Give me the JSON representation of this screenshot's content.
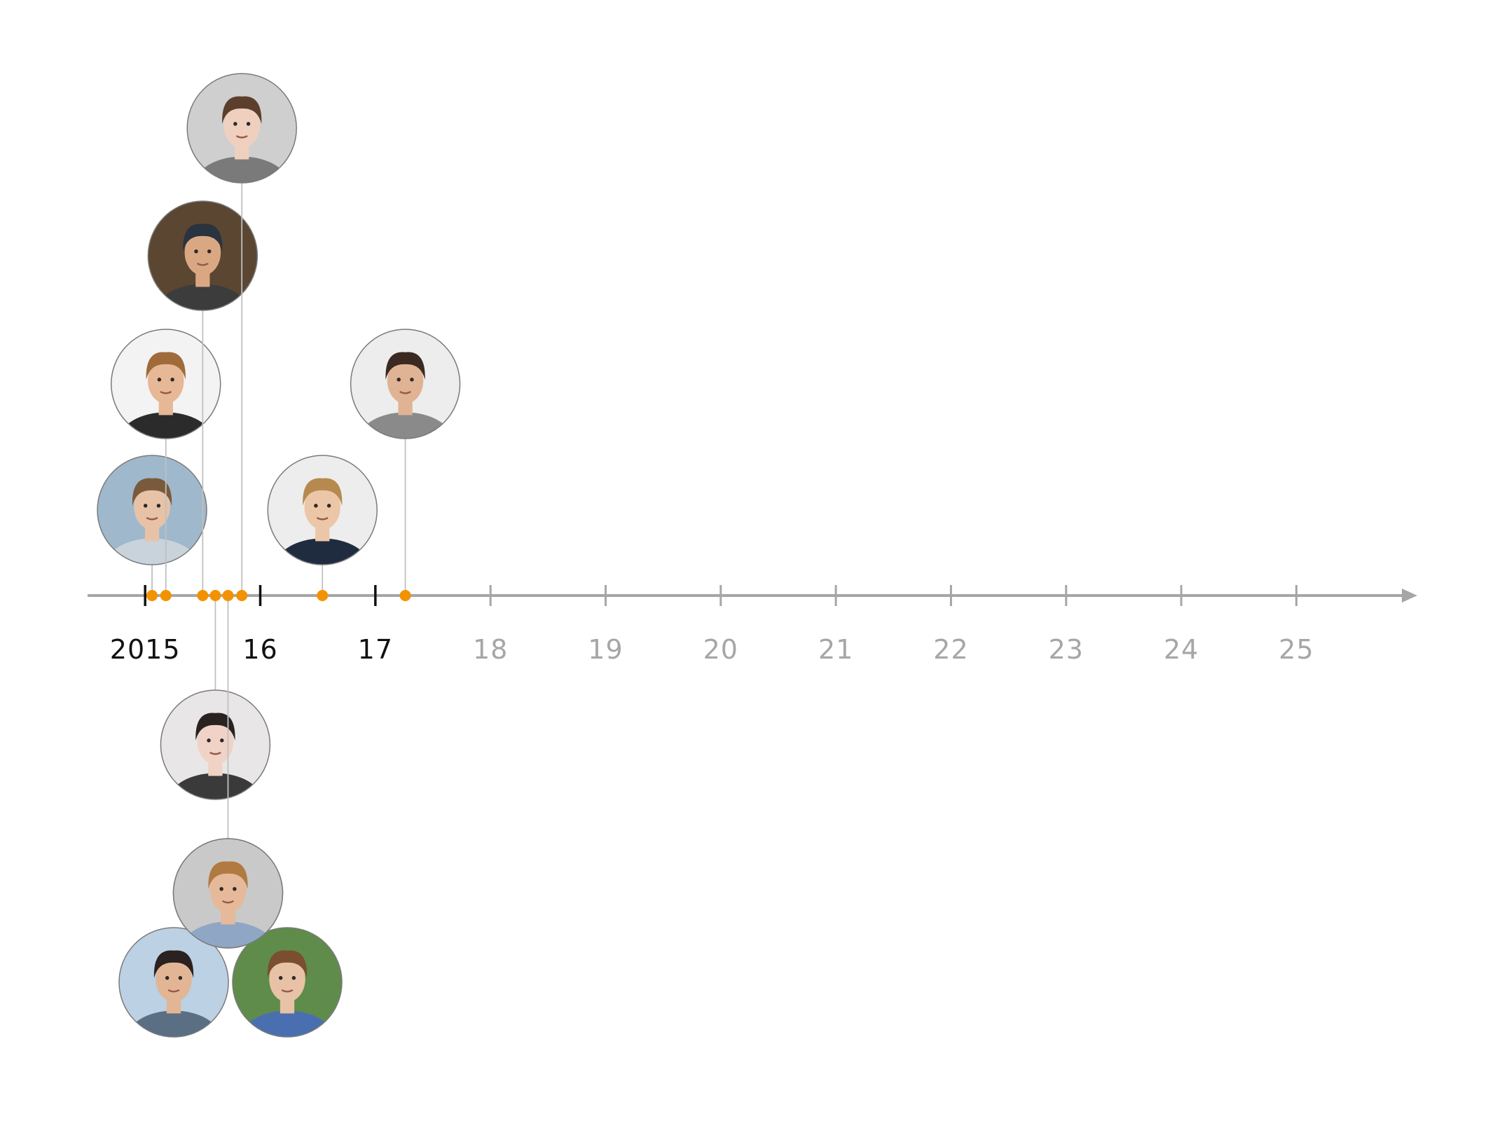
{
  "colors": {
    "axis": "#a6a6a6",
    "tick_active": "#111111",
    "label_active": "#111111",
    "label_future": "#a6a6a6",
    "marker": "#f39200",
    "connector": "#c0c0c0",
    "avatar_border": "#7a7a7a"
  },
  "timeline": {
    "x_range": [
      2014.5,
      2026.05
    ],
    "ticks": [
      {
        "label": "2015",
        "year": 2015,
        "active": true
      },
      {
        "label": "16",
        "year": 2016,
        "active": true
      },
      {
        "label": "17",
        "year": 2017,
        "active": true
      },
      {
        "label": "18",
        "year": 2018,
        "active": false
      },
      {
        "label": "19",
        "year": 2019,
        "active": false
      },
      {
        "label": "20",
        "year": 2020,
        "active": false
      },
      {
        "label": "21",
        "year": 2021,
        "active": false
      },
      {
        "label": "22",
        "year": 2022,
        "active": false
      },
      {
        "label": "23",
        "year": 2023,
        "active": false
      },
      {
        "label": "24",
        "year": 2024,
        "active": false
      },
      {
        "label": "25",
        "year": 2025,
        "active": false
      }
    ],
    "events": [
      {
        "year": 2015.06,
        "side": "above",
        "level": 1,
        "bg": "#9fb8cc",
        "skin": "#e8c2a6",
        "hair": "#7a5a3c",
        "shirt": "#c9d3dc"
      },
      {
        "year": 2015.18,
        "side": "above",
        "level": 2,
        "bg": "#f3f3f3",
        "skin": "#e6b896",
        "hair": "#a06a3a",
        "shirt": "#2b2b2b"
      },
      {
        "year": 2015.5,
        "side": "above",
        "level": 3,
        "bg": "#5b4632",
        "skin": "#d9a883",
        "hair": "#2a3340",
        "shirt": "#3c3c3c"
      },
      {
        "year": 2015.61,
        "side": "below",
        "level": 1,
        "bg": "#e8e6e6",
        "skin": "#f0d3c6",
        "hair": "#2a2220",
        "shirt": "#3a3a3a"
      },
      {
        "year": 2015.72,
        "side": "below",
        "level": 2,
        "bg": "#c9c9c9",
        "skin": "#e5b999",
        "hair": "#b07a42",
        "shirt": "#8fa6c4"
      },
      {
        "year": 2015.84,
        "side": "above",
        "level": 4,
        "bg": "#cfcfcf",
        "skin": "#efd0bf",
        "hair": "#5b3f2c",
        "shirt": "#7a7a7a"
      },
      {
        "year": 2016.54,
        "side": "above",
        "level": 1,
        "bg": "#ededed",
        "skin": "#ecc7a7",
        "hair": "#b68a4e",
        "shirt": "#1f2c40"
      },
      {
        "year": 2017.26,
        "side": "above",
        "level": 2,
        "bg": "#ededed",
        "skin": "#e0b394",
        "hair": "#3a2a22",
        "shirt": "#8a8a8a"
      }
    ],
    "standalone_avatars": [
      {
        "bg": "#bcd1e3",
        "skin": "#e2b594",
        "hair": "#2a2120",
        "shirt": "#5a6e84"
      },
      {
        "bg": "#5f8c4a",
        "skin": "#e8c2a6",
        "hair": "#7a4e2e",
        "shirt": "#4a6fb0"
      }
    ]
  }
}
